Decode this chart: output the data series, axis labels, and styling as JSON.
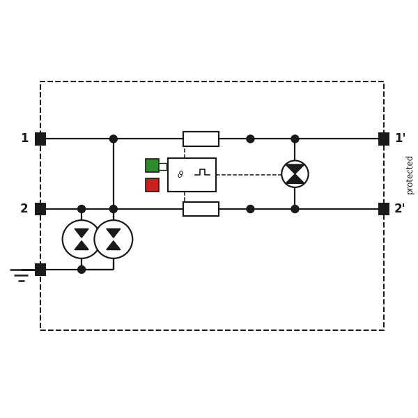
{
  "bg_color": "#ffffff",
  "line_color": "#1a1a1a",
  "green_color": "#2e8b2e",
  "red_color": "#cc2020",
  "fig_width": 6.0,
  "fig_height": 6.0,
  "dpi": 100,
  "label_1": "1",
  "label_2": "2",
  "label_1p": "1'",
  "label_2p": "2'",
  "label_protected": "protected"
}
